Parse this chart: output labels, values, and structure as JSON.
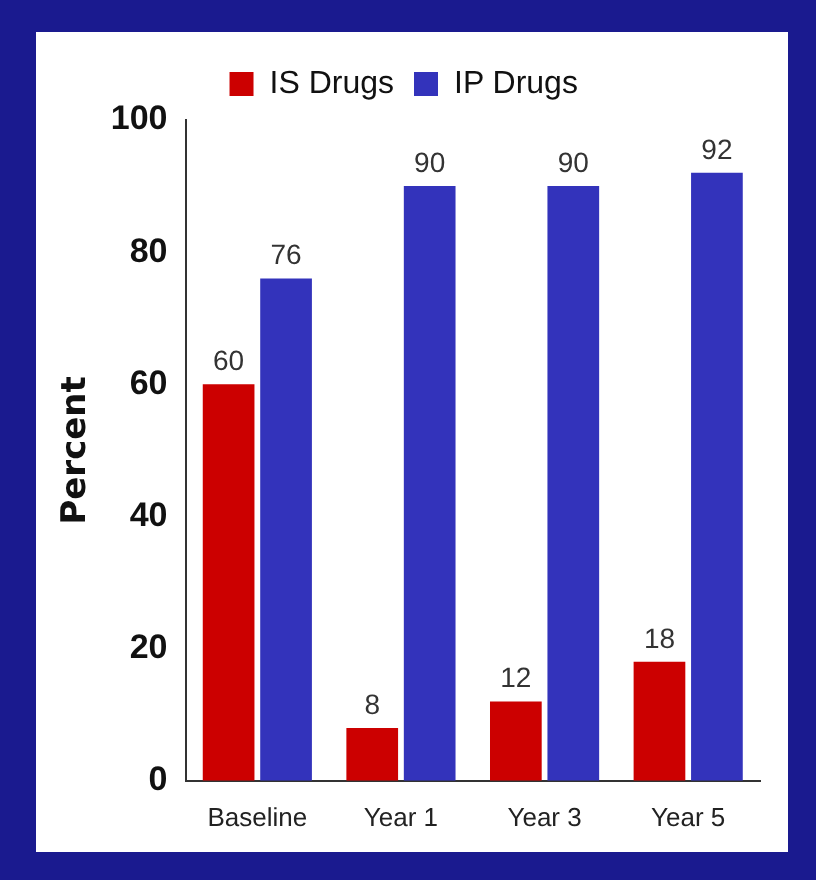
{
  "chart_data": {
    "type": "bar",
    "ylabel": "Percent",
    "categories": [
      "Baseline",
      "Year 1",
      "Year 3",
      "Year 5"
    ],
    "series": [
      {
        "name": "IS Drugs",
        "color": "#cc0000",
        "values": [
          60,
          8,
          12,
          18
        ]
      },
      {
        "name": "IP Drugs",
        "color": "#3333bb",
        "values": [
          76,
          90,
          90,
          92
        ]
      }
    ],
    "ylim": [
      0,
      100
    ],
    "yticks": [
      0,
      20,
      40,
      60,
      80,
      100
    ],
    "grid": false,
    "legend": "top",
    "data_labels": true
  }
}
